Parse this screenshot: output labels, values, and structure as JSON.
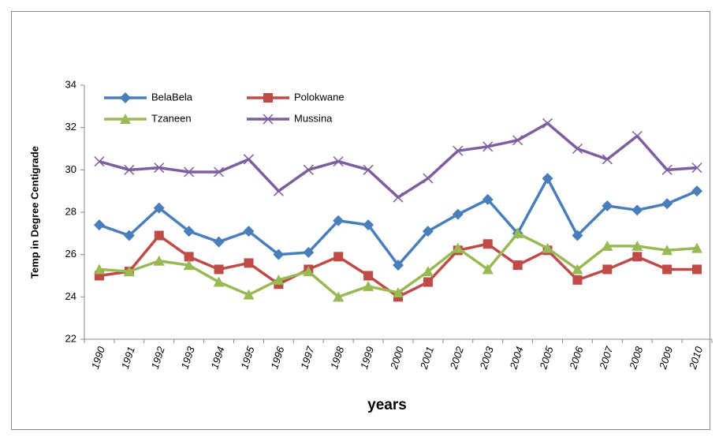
{
  "chart_data": {
    "type": "line",
    "y_label": "Temp in Degree Centigrade",
    "x_label": "years",
    "categories": [
      "1990",
      "1991",
      "1992",
      "1993",
      "1994",
      "1995",
      "1996",
      "1997",
      "1998",
      "1999",
      "2000",
      "2001",
      "2002",
      "2003",
      "2004",
      "2005",
      "2006",
      "2007",
      "2008",
      "2009",
      "2010"
    ],
    "series": [
      {
        "name": "BelaBela",
        "color": "#4a7ebb",
        "marker": "diamond",
        "values": [
          27.4,
          26.9,
          28.2,
          27.1,
          26.6,
          27.1,
          26.0,
          26.1,
          27.6,
          27.4,
          25.5,
          27.1,
          27.9,
          28.6,
          27.0,
          29.6,
          26.9,
          28.3,
          28.1,
          28.4,
          29.0
        ]
      },
      {
        "name": "Polokwane",
        "color": "#be4b48",
        "marker": "square",
        "values": [
          25.0,
          25.2,
          26.9,
          25.9,
          25.3,
          25.6,
          24.6,
          25.3,
          25.9,
          25.0,
          24.0,
          24.7,
          26.2,
          26.5,
          25.5,
          26.2,
          24.8,
          25.3,
          25.9,
          25.3,
          25.3
        ]
      },
      {
        "name": "Tzaneen",
        "color": "#98b954",
        "marker": "triangle",
        "values": [
          25.3,
          25.2,
          25.7,
          25.5,
          24.7,
          24.1,
          24.8,
          25.2,
          24.0,
          24.5,
          24.2,
          25.2,
          26.3,
          25.3,
          27.0,
          26.3,
          25.3,
          26.4,
          26.4,
          26.2,
          26.3
        ]
      },
      {
        "name": "Mussina",
        "color": "#7d5fa0",
        "marker": "x",
        "values": [
          30.4,
          30.0,
          30.1,
          29.9,
          29.9,
          30.5,
          29.0,
          30.0,
          30.4,
          30.0,
          28.7,
          29.6,
          30.9,
          31.1,
          31.4,
          32.2,
          31.0,
          30.5,
          31.6,
          30.0,
          30.1
        ]
      }
    ],
    "ylim": [
      22,
      34
    ],
    "yticks": [
      22,
      24,
      26,
      28,
      30,
      32,
      34
    ],
    "grid": false
  }
}
